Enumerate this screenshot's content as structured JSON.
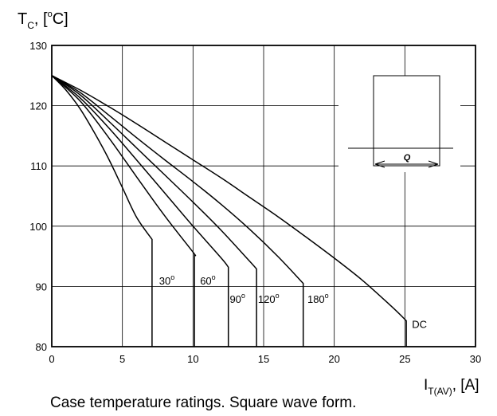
{
  "chart_data": {
    "type": "line",
    "title": "",
    "ylabel": {
      "base": "T",
      "sub": "C",
      "rest": ", [",
      "sup": "o",
      "end": "C]"
    },
    "xlabel": {
      "base": "I",
      "sub": "T(AV)",
      "rest": ", [A]"
    },
    "caption": "Case temperature ratings. Square wave form.",
    "xlim": [
      0,
      30
    ],
    "ylim": [
      80,
      130
    ],
    "xticks": [
      0,
      5,
      10,
      15,
      20,
      25,
      30
    ],
    "yticks": [
      80,
      90,
      100,
      110,
      120,
      130
    ],
    "grid": true,
    "series": [
      {
        "name": "30",
        "deg": "o",
        "points": [
          [
            0,
            125
          ],
          [
            1,
            122.6
          ],
          [
            2,
            119.5
          ],
          [
            3,
            115.6
          ],
          [
            4,
            111.3
          ],
          [
            5,
            106.4
          ],
          [
            6,
            101.5
          ],
          [
            7.1,
            97.8
          ],
          [
            7.1,
            80
          ]
        ],
        "label_at": [
          7.6,
          90.3
        ]
      },
      {
        "name": "60",
        "deg": "o",
        "points": [
          [
            0,
            125
          ],
          [
            2,
            120.8
          ],
          [
            4,
            114.8
          ],
          [
            6,
            108.2
          ],
          [
            8,
            101.7
          ],
          [
            10,
            95.7
          ],
          [
            10.1,
            95.3
          ],
          [
            10.1,
            80
          ]
        ],
        "label_at": [
          10.5,
          90.3
        ]
      },
      {
        "name": "90",
        "deg": "o",
        "points": [
          [
            0,
            125
          ],
          [
            2,
            121.3
          ],
          [
            4,
            116.4
          ],
          [
            6,
            111
          ],
          [
            8,
            105.5
          ],
          [
            10,
            100
          ],
          [
            12,
            94.7
          ],
          [
            12.5,
            93.2
          ],
          [
            12.5,
            80
          ]
        ],
        "label_at": [
          12.6,
          87.3
        ]
      },
      {
        "name": "120",
        "deg": "o",
        "points": [
          [
            0,
            125
          ],
          [
            2,
            121.8
          ],
          [
            4,
            117.5
          ],
          [
            6,
            113
          ],
          [
            8,
            108.5
          ],
          [
            10,
            104
          ],
          [
            12,
            99.3
          ],
          [
            14,
            94.2
          ],
          [
            14.5,
            92.9
          ],
          [
            14.5,
            80
          ]
        ],
        "label_at": [
          14.6,
          87.3
        ]
      },
      {
        "name": "180",
        "deg": "o",
        "points": [
          [
            0,
            125
          ],
          [
            2,
            122.2
          ],
          [
            4,
            118.5
          ],
          [
            6,
            114.7
          ],
          [
            8,
            111
          ],
          [
            10,
            107.4
          ],
          [
            12,
            103.6
          ],
          [
            14,
            99.5
          ],
          [
            16,
            95
          ],
          [
            17.8,
            90.5
          ],
          [
            17.8,
            80
          ]
        ],
        "label_at": [
          18.1,
          87.3
        ]
      },
      {
        "name": "DC",
        "deg": "",
        "points": [
          [
            0,
            125
          ],
          [
            2,
            122.6
          ],
          [
            4,
            119.9
          ],
          [
            6,
            117
          ],
          [
            8,
            114
          ],
          [
            10,
            111
          ],
          [
            12,
            108
          ],
          [
            14,
            104.8
          ],
          [
            16,
            101.6
          ],
          [
            18,
            98.2
          ],
          [
            20,
            94.7
          ],
          [
            22,
            91
          ],
          [
            24,
            86.8
          ],
          [
            25.1,
            84.3
          ],
          [
            25.1,
            80
          ]
        ],
        "label_at": [
          25.5,
          83.1
        ]
      }
    ],
    "inset": {
      "label": "Q"
    }
  }
}
